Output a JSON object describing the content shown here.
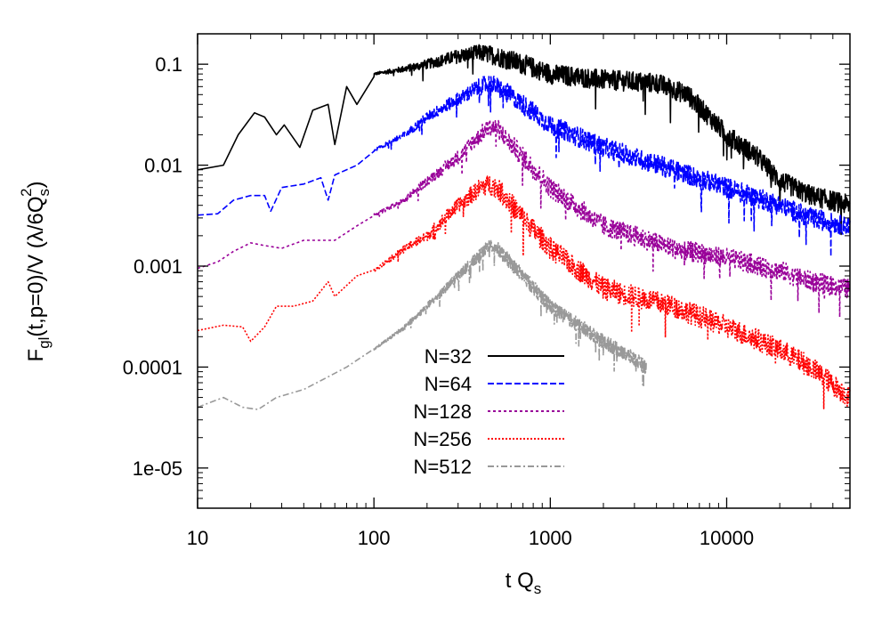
{
  "chart_data": {
    "type": "line",
    "xscale": "log",
    "yscale": "log",
    "xlim": [
      10,
      50000
    ],
    "ylim": [
      4e-06,
      0.2
    ],
    "xlabel": "t Q",
    "xlabel_sub": "s",
    "ylabel_parts": {
      "f": "F",
      "f_sub": "gl",
      "mid": "(t,p=0)/V (λ/6Q",
      "q_sub": "s",
      "q_sup": "2",
      "end": ")"
    },
    "xticks": [
      {
        "value": 10,
        "label": "10"
      },
      {
        "value": 100,
        "label": "100"
      },
      {
        "value": 1000,
        "label": "1000"
      },
      {
        "value": 10000,
        "label": "10000"
      }
    ],
    "yticks": [
      {
        "value": 0.1,
        "label": "0.1"
      },
      {
        "value": 0.01,
        "label": "0.01"
      },
      {
        "value": 0.001,
        "label": "0.001"
      },
      {
        "value": 0.0001,
        "label": "0.0001"
      },
      {
        "value": 1e-05,
        "label": "1e-05"
      }
    ],
    "legend_position": "center-left",
    "series": [
      {
        "name": "N=32",
        "color": "#000000",
        "dash": "",
        "noise": 0.1,
        "points": [
          [
            10,
            0.009
          ],
          [
            14,
            0.01
          ],
          [
            17,
            0.02
          ],
          [
            21,
            0.033
          ],
          [
            24,
            0.03
          ],
          [
            28,
            0.02
          ],
          [
            31,
            0.025
          ],
          [
            38,
            0.015
          ],
          [
            45,
            0.035
          ],
          [
            55,
            0.04
          ],
          [
            60,
            0.016
          ],
          [
            70,
            0.06
          ],
          [
            80,
            0.04
          ],
          [
            100,
            0.08
          ],
          [
            150,
            0.09
          ],
          [
            200,
            0.1
          ],
          [
            300,
            0.12
          ],
          [
            400,
            0.13
          ],
          [
            500,
            0.12
          ],
          [
            700,
            0.1
          ],
          [
            1000,
            0.08
          ],
          [
            2000,
            0.07
          ],
          [
            4000,
            0.065
          ],
          [
            6000,
            0.05
          ],
          [
            8000,
            0.03
          ],
          [
            10000,
            0.02
          ],
          [
            15000,
            0.012
          ],
          [
            20000,
            0.007
          ],
          [
            30000,
            0.005
          ],
          [
            50000,
            0.004
          ]
        ]
      },
      {
        "name": "N=64",
        "color": "#0000ff",
        "dash": "7,3",
        "noise": 0.1,
        "points": [
          [
            10,
            0.0032
          ],
          [
            13,
            0.0033
          ],
          [
            16,
            0.0045
          ],
          [
            20,
            0.005
          ],
          [
            24,
            0.005
          ],
          [
            26,
            0.0035
          ],
          [
            30,
            0.006
          ],
          [
            40,
            0.0065
          ],
          [
            50,
            0.0075
          ],
          [
            55,
            0.0045
          ],
          [
            60,
            0.008
          ],
          [
            80,
            0.01
          ],
          [
            100,
            0.014
          ],
          [
            150,
            0.02
          ],
          [
            200,
            0.03
          ],
          [
            300,
            0.045
          ],
          [
            400,
            0.06
          ],
          [
            450,
            0.065
          ],
          [
            500,
            0.06
          ],
          [
            700,
            0.04
          ],
          [
            1000,
            0.025
          ],
          [
            2000,
            0.015
          ],
          [
            5000,
            0.009
          ],
          [
            10000,
            0.006
          ],
          [
            20000,
            0.004
          ],
          [
            30000,
            0.003
          ],
          [
            50000,
            0.0025
          ]
        ]
      },
      {
        "name": "N=128",
        "color": "#990099",
        "dash": "3,3",
        "noise": 0.1,
        "points": [
          [
            10,
            0.00095
          ],
          [
            13,
            0.0011
          ],
          [
            16,
            0.0014
          ],
          [
            20,
            0.0017
          ],
          [
            24,
            0.0016
          ],
          [
            30,
            0.0015
          ],
          [
            40,
            0.0018
          ],
          [
            60,
            0.0018
          ],
          [
            80,
            0.0025
          ],
          [
            100,
            0.0032
          ],
          [
            150,
            0.0045
          ],
          [
            200,
            0.007
          ],
          [
            300,
            0.012
          ],
          [
            400,
            0.02
          ],
          [
            450,
            0.024
          ],
          [
            500,
            0.023
          ],
          [
            700,
            0.012
          ],
          [
            1000,
            0.006
          ],
          [
            2000,
            0.0025
          ],
          [
            5000,
            0.0015
          ],
          [
            10000,
            0.0012
          ],
          [
            20000,
            0.0009
          ],
          [
            30000,
            0.0007
          ],
          [
            50000,
            0.0006
          ]
        ]
      },
      {
        "name": "N=256",
        "color": "#ff0000",
        "dash": "2,2",
        "noise": 0.11,
        "points": [
          [
            10,
            0.00023
          ],
          [
            14,
            0.00026
          ],
          [
            18,
            0.00025
          ],
          [
            20,
            0.00018
          ],
          [
            24,
            0.00025
          ],
          [
            28,
            0.0004
          ],
          [
            35,
            0.0004
          ],
          [
            45,
            0.00045
          ],
          [
            55,
            0.0007
          ],
          [
            60,
            0.0005
          ],
          [
            80,
            0.0008
          ],
          [
            100,
            0.0009
          ],
          [
            150,
            0.0015
          ],
          [
            200,
            0.002
          ],
          [
            300,
            0.004
          ],
          [
            400,
            0.006
          ],
          [
            450,
            0.0065
          ],
          [
            500,
            0.006
          ],
          [
            700,
            0.003
          ],
          [
            1000,
            0.0015
          ],
          [
            2000,
            0.0006
          ],
          [
            5000,
            0.0004
          ],
          [
            10000,
            0.00025
          ],
          [
            20000,
            0.00015
          ],
          [
            30000,
            0.0001
          ],
          [
            50000,
            5e-05
          ]
        ]
      },
      {
        "name": "N=512",
        "color": "#999999",
        "dash": "7,3,2,3",
        "noise": 0.07,
        "points": [
          [
            10,
            4e-05
          ],
          [
            14,
            5e-05
          ],
          [
            18,
            4e-05
          ],
          [
            22,
            3.8e-05
          ],
          [
            28,
            5e-05
          ],
          [
            40,
            6e-05
          ],
          [
            55,
            8e-05
          ],
          [
            70,
            0.0001
          ],
          [
            100,
            0.00015
          ],
          [
            150,
            0.00025
          ],
          [
            200,
            0.0004
          ],
          [
            300,
            0.0008
          ],
          [
            400,
            0.0013
          ],
          [
            450,
            0.0016
          ],
          [
            500,
            0.0015
          ],
          [
            700,
            0.0008
          ],
          [
            1000,
            0.0004
          ],
          [
            1500,
            0.00025
          ],
          [
            2000,
            0.00018
          ],
          [
            3000,
            0.00012
          ],
          [
            3500,
            0.0001
          ]
        ]
      }
    ]
  }
}
